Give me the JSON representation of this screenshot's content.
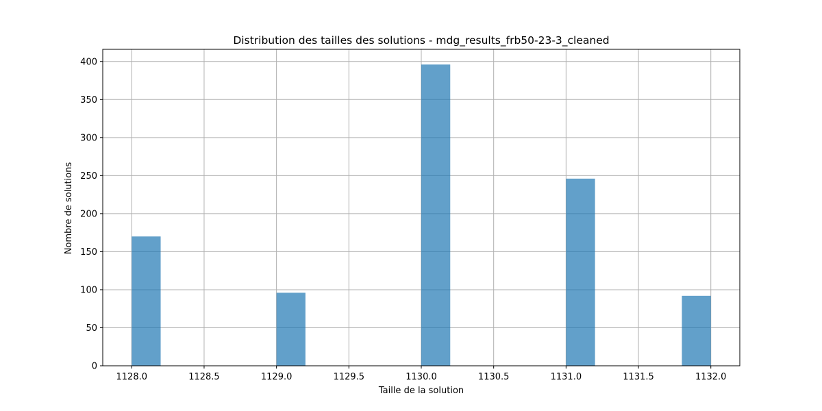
{
  "chart_data": {
    "type": "bar",
    "title": "Distribution des tailles des solutions - mdg_results_frb50-23-3_cleaned",
    "xlabel": "Taille de la solution",
    "ylabel": "Nombre de solutions",
    "xlim": [
      1127.8,
      1132.2
    ],
    "ylim": [
      0,
      416
    ],
    "x_ticks": [
      1128.0,
      1128.5,
      1129.0,
      1129.5,
      1130.0,
      1130.5,
      1131.0,
      1131.5,
      1132.0
    ],
    "x_tick_labels": [
      "1128.0",
      "1128.5",
      "1129.0",
      "1129.5",
      "1130.0",
      "1130.5",
      "1131.0",
      "1131.5",
      "1132.0"
    ],
    "y_ticks": [
      0,
      50,
      100,
      150,
      200,
      250,
      300,
      350,
      400
    ],
    "y_tick_labels": [
      "0",
      "50",
      "100",
      "150",
      "200",
      "250",
      "300",
      "350",
      "400"
    ],
    "bins": [
      {
        "start": 1128.0,
        "end": 1128.2,
        "count": 170
      },
      {
        "start": 1129.0,
        "end": 1129.2,
        "count": 96
      },
      {
        "start": 1130.0,
        "end": 1130.2,
        "count": 396
      },
      {
        "start": 1131.0,
        "end": 1131.2,
        "count": 246
      },
      {
        "start": 1131.8,
        "end": 1132.0,
        "count": 92
      }
    ],
    "grid": true,
    "bar_color": "#1f77b4",
    "bar_alpha": 0.7,
    "grid_color": "#b0b0b0"
  }
}
